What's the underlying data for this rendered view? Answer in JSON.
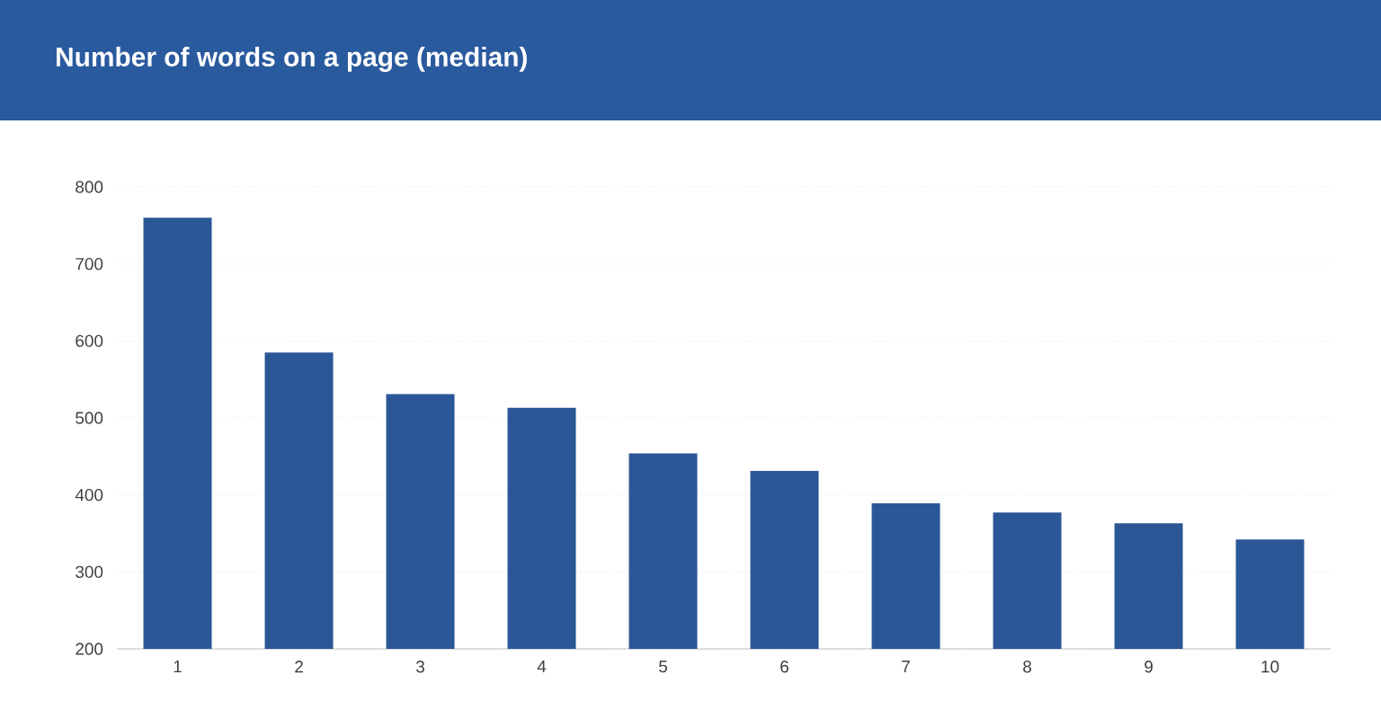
{
  "chart_data": {
    "type": "bar",
    "title": "Number of words on a page (median)",
    "categories": [
      "1",
      "2",
      "3",
      "4",
      "5",
      "6",
      "7",
      "8",
      "9",
      "10"
    ],
    "values": [
      760,
      585,
      531,
      513,
      454,
      431,
      389,
      377,
      363,
      342
    ],
    "color": "#2b5797",
    "ylim": [
      200,
      800
    ],
    "yticks": [
      200,
      300,
      400,
      500,
      600,
      700,
      800
    ],
    "grid": "y"
  }
}
